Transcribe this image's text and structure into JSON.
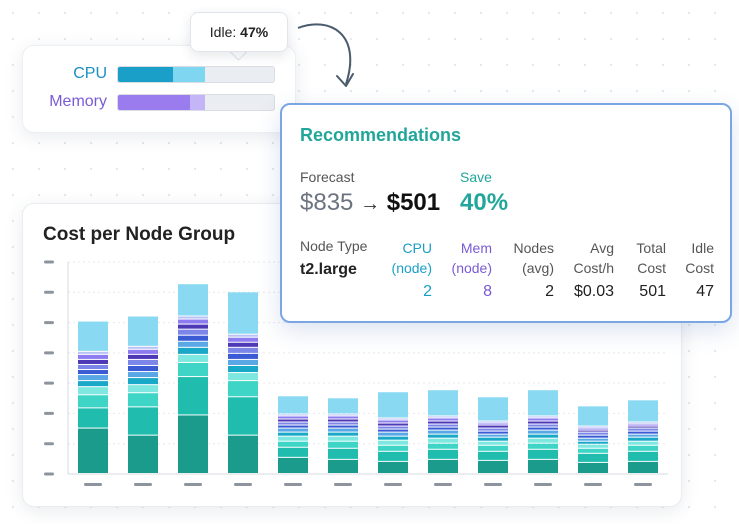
{
  "usage": {
    "cpu_label": "CPU",
    "memory_label": "Memory",
    "cpu_used_pct": 35,
    "cpu_requested_pct": 56,
    "memory_used_pct": 46,
    "memory_requested_pct": 56
  },
  "tooltip": {
    "label": "Idle:",
    "value": "47%"
  },
  "chart": {
    "title": "Cost per Node Group"
  },
  "chart_data": {
    "type": "bar",
    "stacked": true,
    "bars": [
      [
        45,
        20,
        13,
        8,
        6,
        6,
        5,
        5,
        5,
        5,
        3,
        30
      ],
      [
        38,
        28,
        14,
        8,
        7,
        6,
        6,
        6,
        5,
        5,
        3,
        30
      ],
      [
        58,
        38,
        14,
        8,
        7,
        6,
        6,
        6,
        5,
        5,
        3,
        32
      ],
      [
        38,
        38,
        16,
        8,
        7,
        6,
        6,
        6,
        5,
        5,
        3,
        42
      ],
      [
        16,
        10,
        6,
        5,
        4,
        4,
        3,
        3,
        3,
        3,
        2,
        18
      ],
      [
        14,
        11,
        7,
        5,
        4,
        4,
        3,
        3,
        3,
        3,
        2,
        16
      ],
      [
        12,
        10,
        6,
        5,
        4,
        4,
        3,
        3,
        3,
        3,
        2,
        26
      ],
      [
        14,
        10,
        6,
        5,
        4,
        4,
        3,
        3,
        3,
        3,
        2,
        26
      ],
      [
        13,
        9,
        6,
        4,
        4,
        3,
        3,
        3,
        3,
        2,
        2,
        24
      ],
      [
        14,
        10,
        6,
        5,
        4,
        4,
        3,
        3,
        3,
        3,
        2,
        26
      ],
      [
        11,
        9,
        5,
        4,
        3,
        3,
        3,
        3,
        2,
        2,
        2,
        20
      ],
      [
        12,
        10,
        6,
        4,
        4,
        3,
        3,
        3,
        2,
        2,
        2,
        22
      ]
    ],
    "ylim": [
      0,
      210
    ],
    "gridlines": 8,
    "colors": [
      "#1b9b8c",
      "#20bdaf",
      "#3ed4c6",
      "#7ee8e0",
      "#1aa8c8",
      "#5aa7e6",
      "#3b5bd4",
      "#7b86e8",
      "#4d38b5",
      "#8d7cf0",
      "#b8c2f5",
      "#8ad9f2"
    ]
  },
  "recommendations": {
    "title": "Recommendations",
    "forecast_label": "Forecast",
    "forecast_from": "$835",
    "arrow": "→",
    "forecast_to": "$501",
    "save_label": "Save",
    "save_value": "40%",
    "node_type_label": "Node Type",
    "node_type_value": "t2.large",
    "cpu_label_1": "CPU",
    "cpu_label_2": "(node)",
    "cpu_value": "2",
    "mem_label_1": "Mem",
    "mem_label_2": "(node)",
    "mem_value": "8",
    "nodes_label_1": "Nodes",
    "nodes_label_2": "(avg)",
    "nodes_value": "2",
    "avg_label_1": "Avg",
    "avg_label_2": "Cost/h",
    "avg_value": "$0.03",
    "total_label_1": "Total",
    "total_label_2": "Cost",
    "total_value": "501",
    "idle_label_1": "Idle",
    "idle_label_2": "Cost",
    "idle_value": "47"
  },
  "colors": {
    "cpu": "#1a9fc9",
    "cpu_light": "#7fd6f0",
    "memory": "#7b5ce0",
    "memory_light": "#bfaef6",
    "teal": "#20a79b",
    "purple": "#7a5bd6",
    "accent_border": "#7aa6e3"
  }
}
